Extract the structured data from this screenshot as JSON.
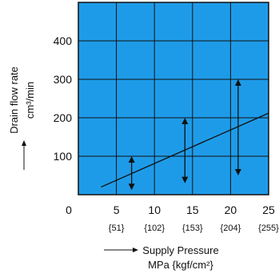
{
  "chart_data": {
    "type": "line",
    "title": "",
    "ylabel": "Drain flow rate",
    "ylabel_unit": "cm³/min",
    "xlabel": "Supply Pressure",
    "xlabel_unit": "MPa {kgf/cm²}",
    "xlim": [
      0,
      25
    ],
    "ylim": [
      0,
      500
    ],
    "x_ticks": [
      {
        "mpa": "0",
        "kgf": ""
      },
      {
        "mpa": "5",
        "kgf": "{51}"
      },
      {
        "mpa": "10",
        "kgf": "{102}"
      },
      {
        "mpa": "15",
        "kgf": "{153}"
      },
      {
        "mpa": "20",
        "kgf": "{204}"
      },
      {
        "mpa": "25",
        "kgf": "{255}"
      }
    ],
    "y_ticks": [
      "100",
      "200",
      "300",
      "400"
    ],
    "grid": true,
    "plot_background": "#1e9be8",
    "line": {
      "x": [
        3,
        25
      ],
      "y": [
        20,
        212
      ]
    },
    "ranges": [
      {
        "x": 7,
        "low": 12,
        "high": 100
      },
      {
        "x": 14,
        "low": 30,
        "high": 200
      },
      {
        "x": 21,
        "low": 50,
        "high": 300
      }
    ]
  }
}
